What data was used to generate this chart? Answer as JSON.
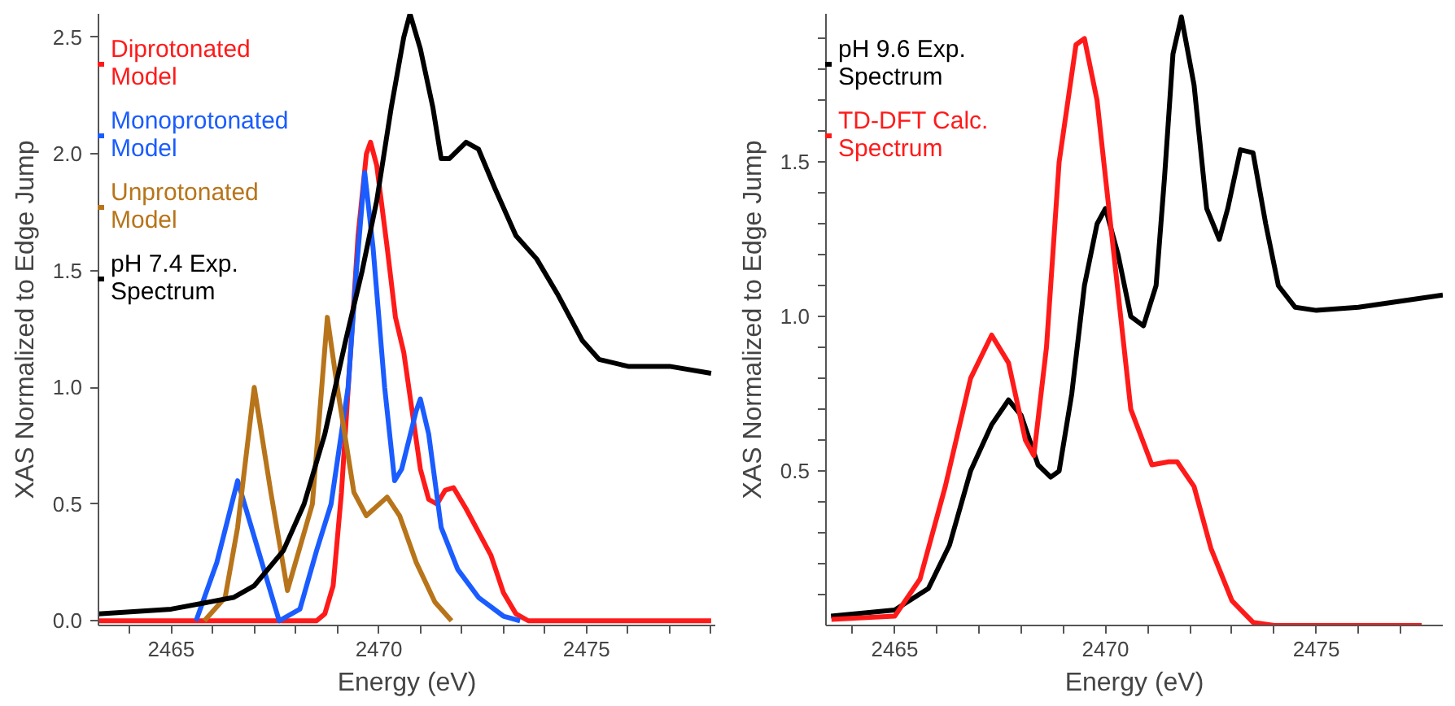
{
  "chart_data": [
    {
      "type": "line",
      "xlabel": "Energy (eV)",
      "ylabel": "XAS Normalized to Edge Jump",
      "xlim": [
        2463.25,
        2478.1
      ],
      "ylim": [
        -0.02,
        2.6
      ],
      "xticks": [
        2465,
        2470,
        2475,
        {
          "value": 2464,
          "label": null
        },
        {
          "value": 2466,
          "label": null
        },
        {
          "value": 2467,
          "label": null
        },
        {
          "value": 2468,
          "label": null
        },
        {
          "value": 2469,
          "label": null
        },
        {
          "value": 2471,
          "label": null
        },
        {
          "value": 2472,
          "label": null
        },
        {
          "value": 2473,
          "label": null
        },
        {
          "value": 2474,
          "label": null
        },
        {
          "value": 2476,
          "label": null
        },
        {
          "value": 2477,
          "label": null
        },
        {
          "value": 2478,
          "label": null
        }
      ],
      "yticks": [
        {
          "value": 0,
          "label": "0.0"
        },
        0.5,
        {
          "value": 1,
          "label": "1.0"
        },
        1.5,
        {
          "value": 2,
          "label": "2.0"
        },
        2.5
      ],
      "grid": false,
      "legend": "top left",
      "marker": "none",
      "line_style": "solid",
      "series": [
        {
          "name": "Diprotonated Model",
          "color": "#ff1a1a",
          "x": [
            2463.25,
            2468.5,
            2468.7,
            2468.9,
            2469.1,
            2469.3,
            2469.5,
            2469.7,
            2469.8,
            2469.95,
            2470.2,
            2470.4,
            2470.6,
            2470.8,
            2471.0,
            2471.2,
            2471.4,
            2471.6,
            2471.8,
            2472.1,
            2472.4,
            2472.7,
            2473.0,
            2473.3,
            2473.6,
            2478.0
          ],
          "values": [
            0,
            0,
            0.03,
            0.15,
            0.55,
            1.1,
            1.65,
            2.0,
            2.05,
            1.95,
            1.6,
            1.3,
            1.15,
            0.9,
            0.65,
            0.52,
            0.5,
            0.56,
            0.57,
            0.48,
            0.38,
            0.28,
            0.12,
            0.03,
            0,
            0
          ]
        },
        {
          "name": "Monoprotonated Model",
          "color": "#1a5cff",
          "x": [
            2465.6,
            2466.1,
            2466.6,
            2467.1,
            2467.6,
            2468.1,
            2468.5,
            2468.85,
            2469.26,
            2469.46,
            2469.66,
            2469.86,
            2470.14,
            2470.38,
            2470.55,
            2470.9,
            2471.0,
            2471.2,
            2471.5,
            2471.9,
            2472.4,
            2473.0,
            2473.4
          ],
          "values": [
            0,
            0.25,
            0.6,
            0.3,
            0,
            0.05,
            0.3,
            0.5,
            1.0,
            1.5,
            1.92,
            1.6,
            1.0,
            0.6,
            0.65,
            0.9,
            0.95,
            0.8,
            0.4,
            0.22,
            0.1,
            0.02,
            0
          ]
        },
        {
          "name": "Unprotonated Model",
          "color": "#b8741a",
          "x": [
            2465.8,
            2466.3,
            2466.6,
            2467.0,
            2467.4,
            2467.8,
            2468.4,
            2468.76,
            2469.0,
            2469.4,
            2469.7,
            2470.2,
            2470.5,
            2470.9,
            2471.35,
            2471.75
          ],
          "values": [
            0,
            0.1,
            0.4,
            1.0,
            0.55,
            0.13,
            0.5,
            1.3,
            1.0,
            0.55,
            0.45,
            0.53,
            0.45,
            0.25,
            0.08,
            0
          ]
        },
        {
          "name": "pH 7.4 Exp. Spectrum",
          "color": "#000000",
          "x": [
            2463.25,
            2465.0,
            2466.5,
            2467.0,
            2467.7,
            2468.2,
            2468.7,
            2469.2,
            2469.6,
            2469.95,
            2470.3,
            2470.6,
            2470.75,
            2471.0,
            2471.3,
            2471.5,
            2471.7,
            2472.1,
            2472.4,
            2472.8,
            2473.3,
            2473.8,
            2474.3,
            2474.9,
            2475.3,
            2476.0,
            2477.0,
            2478.0
          ],
          "values": [
            0.03,
            0.05,
            0.1,
            0.15,
            0.3,
            0.5,
            0.8,
            1.2,
            1.5,
            1.8,
            2.2,
            2.5,
            2.6,
            2.45,
            2.2,
            1.98,
            1.98,
            2.05,
            2.02,
            1.85,
            1.65,
            1.55,
            1.4,
            1.2,
            1.12,
            1.09,
            1.09,
            1.06
          ]
        }
      ]
    },
    {
      "type": "line",
      "xlabel": "Energy (eV)",
      "ylabel": "XAS Normalized to Edge Jump",
      "xlim": [
        2463.37,
        2478.0
      ],
      "ylim": [
        0,
        1.98
      ],
      "xticks": [
        2465,
        2470,
        2475,
        {
          "value": 2464,
          "label": null
        },
        {
          "value": 2466,
          "label": null
        },
        {
          "value": 2467,
          "label": null
        },
        {
          "value": 2468,
          "label": null
        },
        {
          "value": 2469,
          "label": null
        },
        {
          "value": 2471,
          "label": null
        },
        {
          "value": 2472,
          "label": null
        },
        {
          "value": 2473,
          "label": null
        },
        {
          "value": 2474,
          "label": null
        },
        {
          "value": 2476,
          "label": null
        },
        {
          "value": 2477,
          "label": null
        }
      ],
      "yticks": [
        {
          "value": 0.1,
          "label": null
        },
        {
          "value": 0.2,
          "label": null
        },
        {
          "value": 0.3,
          "label": null
        },
        {
          "value": 0.4,
          "label": null
        },
        0.5,
        {
          "value": 0.6,
          "label": null
        },
        {
          "value": 0.7,
          "label": null
        },
        {
          "value": 0.8,
          "label": null
        },
        {
          "value": 0.9,
          "label": null
        },
        {
          "value": 1,
          "label": "1.0"
        },
        {
          "value": 1.1,
          "label": null
        },
        {
          "value": 1.2,
          "label": null
        },
        {
          "value": 1.3,
          "label": null
        },
        {
          "value": 1.4,
          "label": null
        },
        1.5,
        {
          "value": 1.6,
          "label": null
        },
        {
          "value": 1.7,
          "label": null
        },
        {
          "value": 1.8,
          "label": null
        },
        {
          "value": 1.9,
          "label": null
        }
      ],
      "grid": false,
      "legend": "top left",
      "marker": "none",
      "line_style": "solid",
      "series": [
        {
          "name": "pH 9.6 Exp. Spectrum",
          "color": "#000000",
          "x": [
            2463.49,
            2465.0,
            2465.8,
            2466.3,
            2466.8,
            2467.3,
            2467.7,
            2468.0,
            2468.4,
            2468.7,
            2468.9,
            2469.2,
            2469.5,
            2469.8,
            2470.0,
            2470.3,
            2470.6,
            2470.9,
            2471.2,
            2471.4,
            2471.6,
            2471.8,
            2472.1,
            2472.4,
            2472.7,
            2472.9,
            2473.2,
            2473.5,
            2473.8,
            2474.1,
            2474.5,
            2475.0,
            2476.0,
            2477.0,
            2478.0
          ],
          "values": [
            0.03,
            0.05,
            0.12,
            0.26,
            0.5,
            0.65,
            0.73,
            0.68,
            0.52,
            0.48,
            0.5,
            0.75,
            1.1,
            1.3,
            1.35,
            1.2,
            1.0,
            0.97,
            1.1,
            1.45,
            1.85,
            1.97,
            1.75,
            1.35,
            1.25,
            1.35,
            1.54,
            1.53,
            1.3,
            1.1,
            1.03,
            1.02,
            1.03,
            1.05,
            1.07
          ]
        },
        {
          "name": "TD-DFT Calc. Spectrum",
          "color": "#ff1a1a",
          "x": [
            2463.5,
            2465.0,
            2465.6,
            2466.2,
            2466.8,
            2467.3,
            2467.7,
            2468.1,
            2468.3,
            2468.6,
            2468.9,
            2469.3,
            2469.5,
            2469.8,
            2470.2,
            2470.6,
            2471.1,
            2471.5,
            2471.7,
            2472.1,
            2472.5,
            2473.0,
            2473.5,
            2474.0,
            2477.5
          ],
          "values": [
            0.02,
            0.03,
            0.15,
            0.45,
            0.8,
            0.94,
            0.85,
            0.6,
            0.55,
            0.9,
            1.5,
            1.88,
            1.9,
            1.7,
            1.2,
            0.7,
            0.52,
            0.53,
            0.53,
            0.45,
            0.25,
            0.08,
            0.01,
            0,
            0
          ]
        }
      ]
    }
  ]
}
